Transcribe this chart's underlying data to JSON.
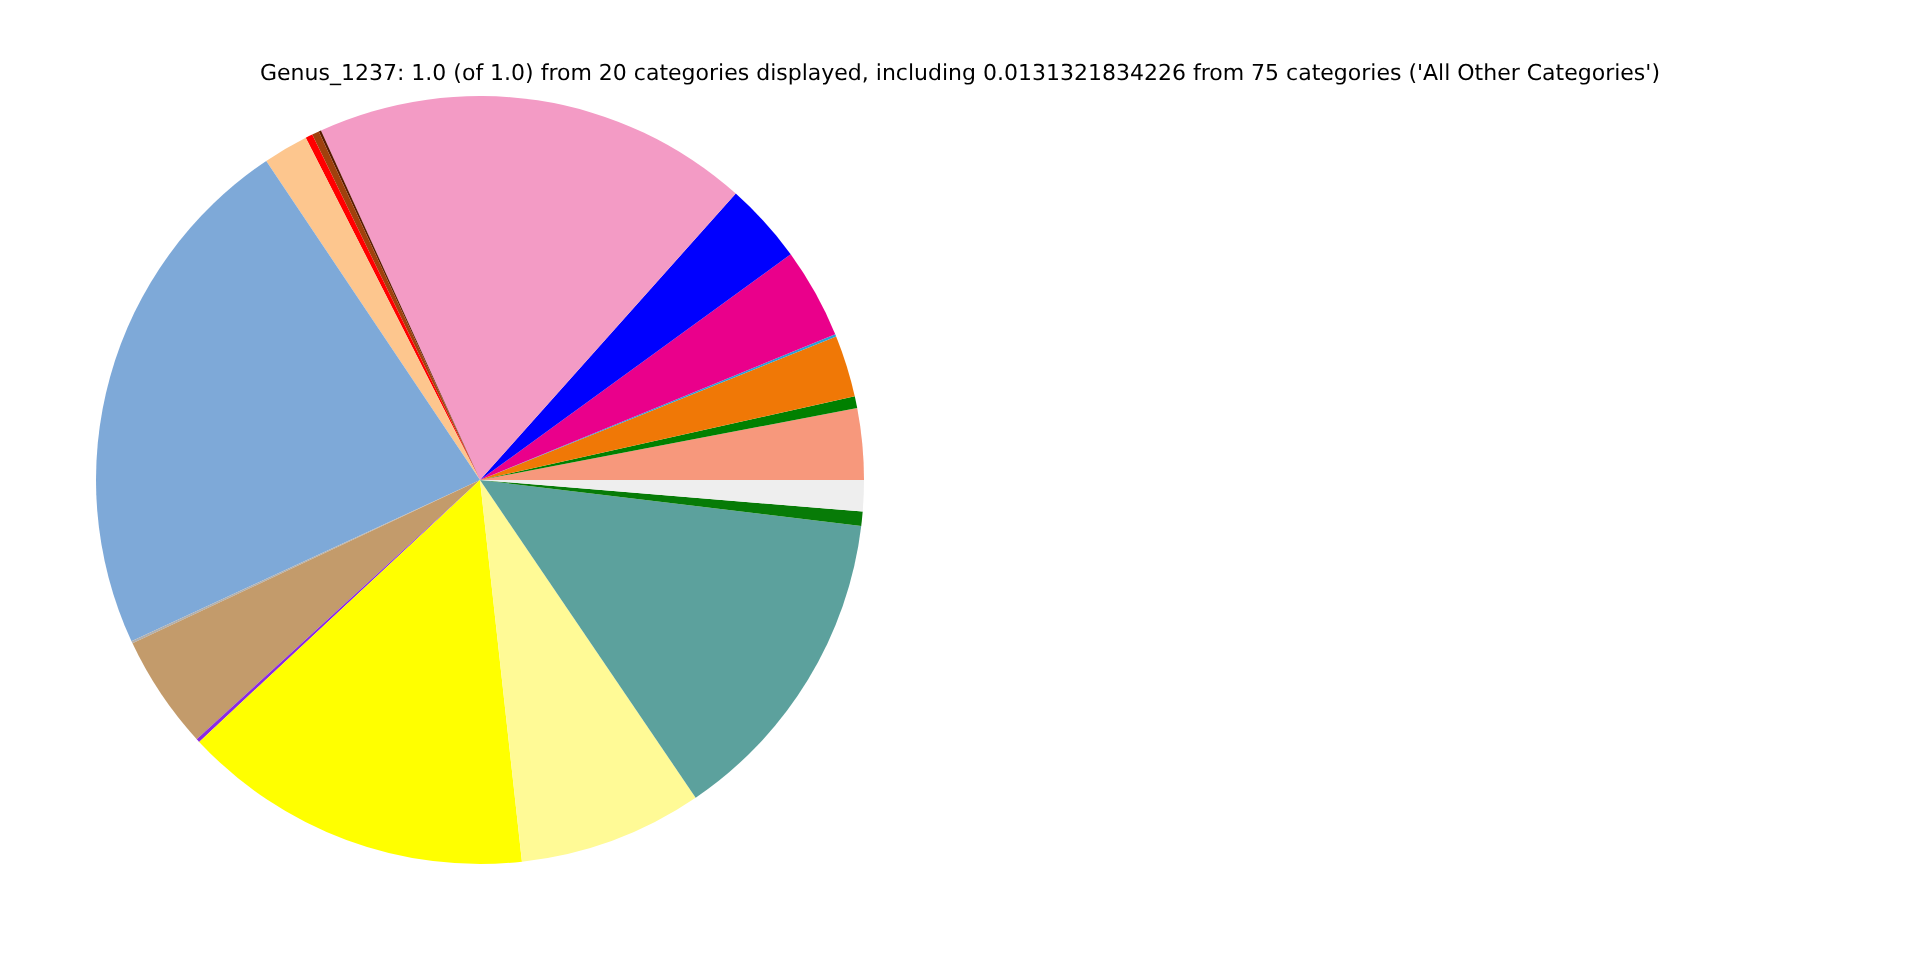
{
  "chart_data": {
    "type": "pie",
    "title": "Genus_1237: 1.0 (of 1.0) from 20 categories displayed, including 0.0131321834226 from 75 categories ('All Other Categories')",
    "categories": [
      null,
      null,
      null,
      null,
      null,
      null,
      null,
      null,
      null,
      null,
      null,
      null,
      null,
      null,
      null,
      null,
      null,
      null,
      null,
      null
    ],
    "values": [
      3.0,
      0.5,
      2.6,
      0.1,
      3.8,
      3.4,
      18.4,
      0.1,
      0.3,
      0.3,
      1.9,
      22.5,
      0.1,
      4.8,
      0.15,
      14.8,
      7.75,
      13.6,
      0.6,
      1.31
    ],
    "colors": [
      "#f7987c",
      "#008000",
      "#f07806",
      "#2a9fd6",
      "#ea008b",
      "#0000ff",
      "#f39bc5",
      "#5a1a00",
      "#a0410d",
      "#ff0000",
      "#fdc68e",
      "#7ea9d8",
      "#b0b0b0",
      "#c39b6b",
      "#8a2be2",
      "#ffff00",
      "#fffa96",
      "#5ca19d",
      "#077b07",
      "#eeeeee"
    ]
  }
}
